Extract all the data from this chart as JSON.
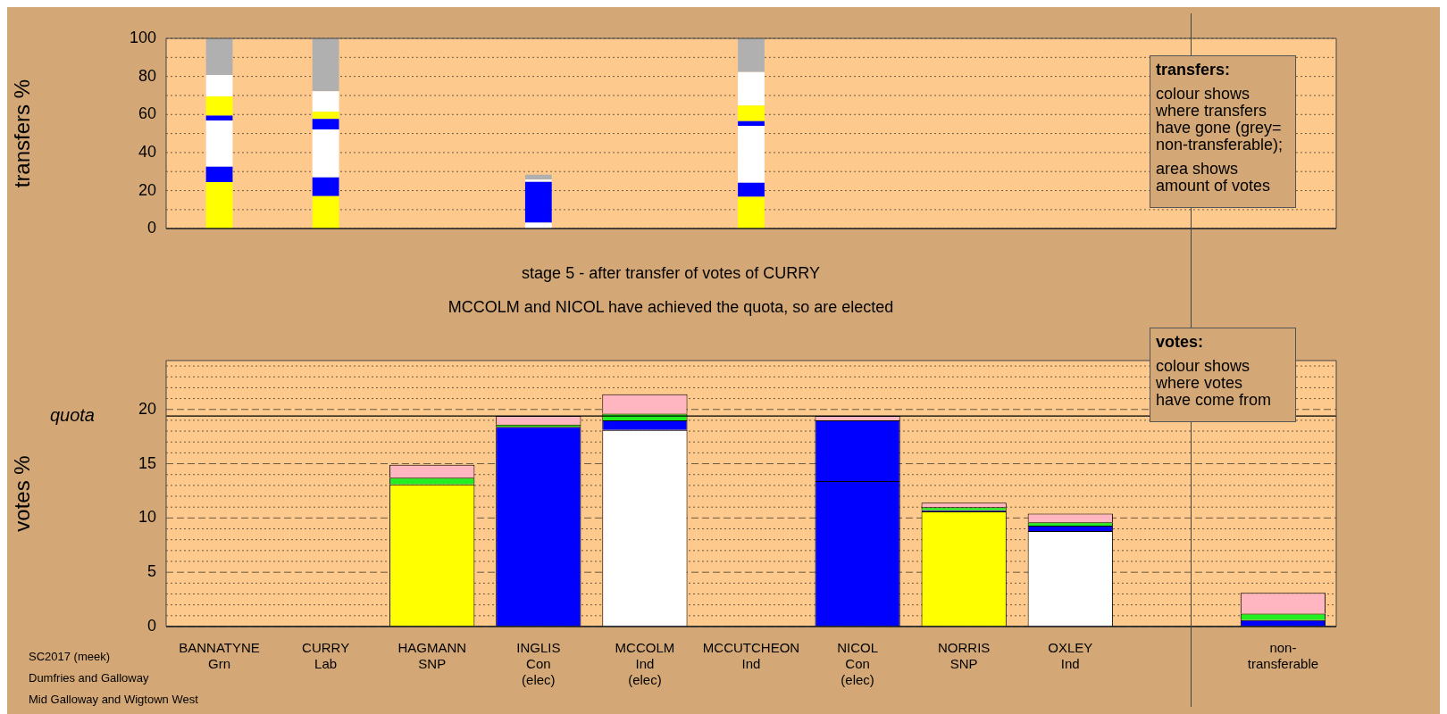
{
  "chart_data": [
    {
      "type": "bar",
      "stacked": true,
      "ylabel": "transfers %",
      "categories": [
        null,
        null,
        null,
        null,
        null,
        null,
        null,
        null,
        null,
        null,
        null
      ],
      "tick_labels": "y",
      "ylim": [
        0,
        100
      ],
      "yticks": [
        0,
        {
          "value": 10,
          "label": null
        },
        20,
        {
          "value": 30,
          "label": null
        },
        40,
        {
          "value": 50,
          "label": null
        },
        60,
        {
          "value": 70,
          "label": null
        },
        80,
        {
          "value": 90,
          "label": null
        },
        100
      ],
      "grid": "y",
      "annotations": [
        "transfers:",
        "colour shows\nwhere transfers\nhave gone (grey=\nnon-transferable);",
        "area shows\namount of votes"
      ],
      "series": [
        {
          "color": "#ffff00",
          "values": [
            24.5,
            17.1,
            null,
            null,
            null,
            16.7,
            null,
            null,
            null,
            null,
            null
          ]
        },
        {
          "color": "#0000ff",
          "values": [
            8.1,
            9.9,
            null,
            0,
            null,
            7.4,
            null,
            null,
            null,
            null,
            null
          ]
        },
        {
          "color": "#ffffff",
          "values": [
            24.3,
            25.2,
            null,
            3.1,
            null,
            29.9,
            null,
            null,
            null,
            null,
            null
          ]
        },
        {
          "color": "#0000ff",
          "values": [
            2.5,
            5.5,
            null,
            21.5,
            null,
            2.5,
            null,
            null,
            null,
            null,
            null
          ]
        },
        {
          "color": "#ffff00",
          "values": [
            10.1,
            3.7,
            null,
            0,
            null,
            8.2,
            null,
            null,
            null,
            null,
            null
          ]
        },
        {
          "color": "#ffffff",
          "values": [
            11.3,
            10.8,
            null,
            1.2,
            null,
            17.6,
            null,
            null,
            null,
            null,
            null
          ]
        },
        {
          "color": "#b0b0b0",
          "values": [
            19.2,
            27.8,
            null,
            2.5,
            null,
            17.7,
            null,
            null,
            null,
            null,
            null
          ]
        }
      ]
    },
    {
      "type": "bar",
      "stacked": true,
      "title": "stage 5 - after transfer of votes of CURRY",
      "subtitle": "MCCOLM and NICOL have achieved the quota, so are elected",
      "ylabel": "votes %",
      "categories": [
        "BANNATYNE\nGrn",
        "CURRY\nLab",
        "HAGMANN\nSNP",
        "INGLIS\nCon\n(elec)",
        "MCCOLM\nInd\n(elec)",
        "MCCUTCHEON\nInd",
        "NICOL\nCon\n(elec)",
        "NORRIS\nSNP",
        "OXLEY\nInd",
        null,
        "non-\ntransferable"
      ],
      "ylim": [
        0,
        24.5
      ],
      "yticks": [
        0,
        {
          "value": 1,
          "label": null
        },
        {
          "value": 2,
          "label": null
        },
        {
          "value": 3,
          "label": null
        },
        {
          "value": 4,
          "label": null
        },
        5,
        {
          "value": 6,
          "label": null
        },
        {
          "value": 7,
          "label": null
        },
        {
          "value": 8,
          "label": null
        },
        {
          "value": 9,
          "label": null
        },
        10,
        {
          "value": 11,
          "label": null
        },
        {
          "value": 12,
          "label": null
        },
        {
          "value": 13,
          "label": null
        },
        {
          "value": 14,
          "label": null
        },
        15,
        {
          "value": 16,
          "label": null
        },
        {
          "value": 17,
          "label": null
        },
        {
          "value": 18,
          "label": null
        },
        {
          "value": 19,
          "label": null
        },
        20,
        {
          "value": 21,
          "label": null
        },
        {
          "value": 22,
          "label": null
        },
        {
          "value": 23,
          "label": null
        },
        {
          "value": 24,
          "label": null
        }
      ],
      "grid": "y",
      "ref_lines": [
        {
          "axis": "y",
          "value": 19.4,
          "label": "quota",
          "color": "#000000"
        }
      ],
      "annotations": [
        "votes:",
        "colour shows\nwhere votes\nhave come from",
        "SC2017 (meek)",
        "Dumfries and Galloway",
        "Mid Galloway and Wigtown West"
      ],
      "series": [
        {
          "colors": [
            "#ffffff",
            "#ffffff",
            "#ffff00",
            "#0000ff",
            "#ffffff",
            "#ffffff",
            "#0000ff",
            "#ffff00",
            "#ffffff",
            null,
            "#ffffff"
          ],
          "values": [
            0,
            0,
            13.1,
            18.4,
            18.1,
            0,
            13.4,
            10.6,
            8.8,
            null,
            0
          ]
        },
        {
          "color": "#0000ff",
          "values": [
            0,
            0,
            null,
            0,
            0.9,
            0,
            5.6,
            0.1,
            0.5,
            null,
            0.6
          ]
        },
        {
          "color": "#ffffff",
          "values": [
            0,
            0,
            0,
            0,
            null,
            0,
            0,
            0,
            0,
            null,
            0
          ]
        },
        {
          "color": "#22ee22",
          "values": [
            0,
            0,
            0.6,
            0.2,
            0.6,
            0,
            null,
            0.3,
            0.3,
            null,
            0.6
          ]
        },
        {
          "color": "#ffb6c1",
          "values": [
            0,
            0,
            1.2,
            0.8,
            1.8,
            0,
            0.4,
            0.4,
            0.8,
            null,
            1.9
          ]
        }
      ]
    }
  ]
}
